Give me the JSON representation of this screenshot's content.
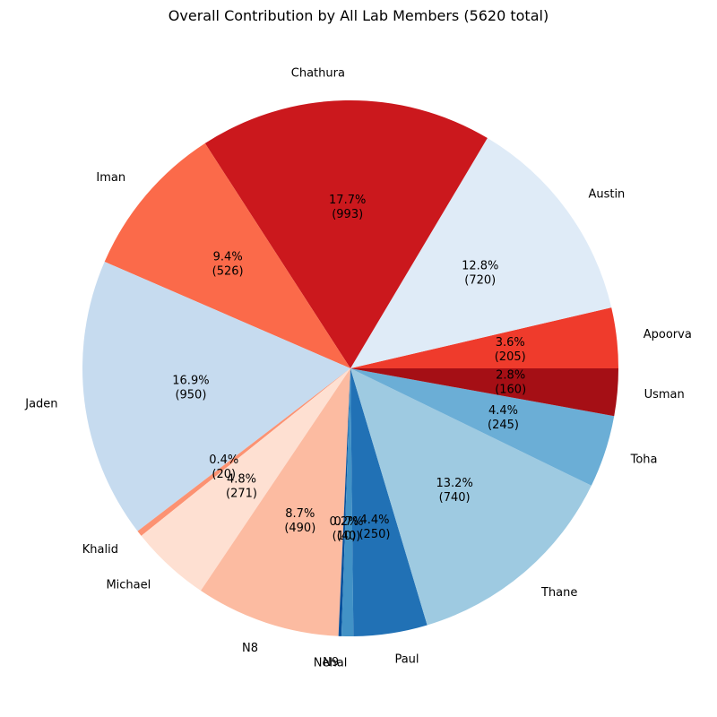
{
  "chart_data": {
    "type": "pie",
    "title": "Overall Contribution by All Lab Members (5620 total)",
    "total": 5620,
    "start_angle_deg": 0,
    "direction": "counterclockwise",
    "slices": [
      {
        "name": "Apoorva",
        "value": 205,
        "percent_label": "3.6%",
        "value_label": "(205)",
        "color": "#ef3b2c"
      },
      {
        "name": "Austin",
        "value": 720,
        "percent_label": "12.8%",
        "value_label": "(720)",
        "color": "#dfebf7"
      },
      {
        "name": "Chathura",
        "value": 993,
        "percent_label": "17.7%",
        "value_label": "(993)",
        "color": "#cb181d"
      },
      {
        "name": "Iman",
        "value": 526,
        "percent_label": "9.4%",
        "value_label": "(526)",
        "color": "#fb6a4a"
      },
      {
        "name": "Jaden",
        "value": 950,
        "percent_label": "16.9%",
        "value_label": "(950)",
        "color": "#c6dbef"
      },
      {
        "name": "Khalid",
        "value": 20,
        "percent_label": "0.4%",
        "value_label": "(20)",
        "color": "#fc9272"
      },
      {
        "name": "Michael",
        "value": 271,
        "percent_label": "4.8%",
        "value_label": "(271)",
        "color": "#fee0d2"
      },
      {
        "name": "N8",
        "value": 490,
        "percent_label": "8.7%",
        "value_label": "(490)",
        "color": "#fcbba1"
      },
      {
        "name": "N9",
        "value": 10,
        "percent_label": "0.2%",
        "value_label": "(10)",
        "color": "#08519c"
      },
      {
        "name": "Nehal",
        "value": 40,
        "percent_label": "0.7%",
        "value_label": "(40)",
        "color": "#4292c6"
      },
      {
        "name": "Paul",
        "value": 250,
        "percent_label": "4.4%",
        "value_label": "(250)",
        "color": "#2171b5"
      },
      {
        "name": "Thane",
        "value": 740,
        "percent_label": "13.2%",
        "value_label": "(740)",
        "color": "#9ecae1"
      },
      {
        "name": "Toha",
        "value": 245,
        "percent_label": "4.4%",
        "value_label": "(245)",
        "color": "#6baed6"
      },
      {
        "name": "Usman",
        "value": 160,
        "percent_label": "2.8%",
        "value_label": "(160)",
        "color": "#a50f15"
      }
    ]
  }
}
